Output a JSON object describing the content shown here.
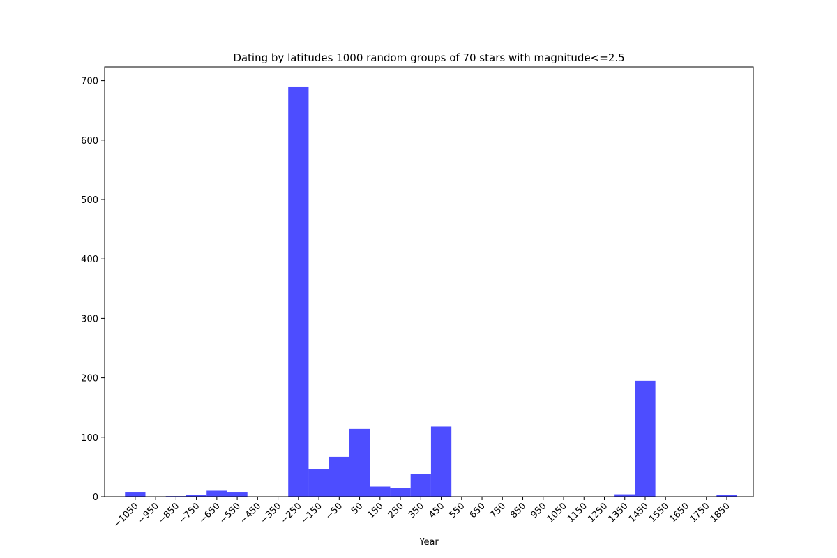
{
  "chart_data": {
    "type": "bar",
    "title": "Dating by latitudes 1000 random groups of 70 stars with magnitude<=2.5",
    "xlabel": "Year",
    "ylabel": "",
    "bin_width": 100,
    "bins": [
      {
        "start": -1100,
        "end": -1000,
        "count": 7
      },
      {
        "start": -1000,
        "end": -900,
        "count": 0
      },
      {
        "start": -900,
        "end": -800,
        "count": 1
      },
      {
        "start": -800,
        "end": -700,
        "count": 3
      },
      {
        "start": -700,
        "end": -600,
        "count": 10
      },
      {
        "start": -600,
        "end": -500,
        "count": 7
      },
      {
        "start": -500,
        "end": -400,
        "count": 0
      },
      {
        "start": -400,
        "end": -300,
        "count": 0
      },
      {
        "start": -300,
        "end": -200,
        "count": 689
      },
      {
        "start": -200,
        "end": -100,
        "count": 46
      },
      {
        "start": -100,
        "end": 0,
        "count": 67
      },
      {
        "start": 0,
        "end": 100,
        "count": 114
      },
      {
        "start": 100,
        "end": 200,
        "count": 17
      },
      {
        "start": 200,
        "end": 300,
        "count": 15
      },
      {
        "start": 300,
        "end": 400,
        "count": 38
      },
      {
        "start": 400,
        "end": 500,
        "count": 118
      },
      {
        "start": 1300,
        "end": 1400,
        "count": 4
      },
      {
        "start": 1400,
        "end": 1500,
        "count": 195
      },
      {
        "start": 1800,
        "end": 1900,
        "count": 3
      }
    ],
    "xticks": [
      -1050,
      -950,
      -850,
      -750,
      -650,
      -550,
      -450,
      -350,
      -250,
      -150,
      -50,
      50,
      150,
      250,
      350,
      450,
      550,
      650,
      750,
      850,
      950,
      1050,
      1150,
      1250,
      1350,
      1450,
      1550,
      1650,
      1750,
      1850
    ],
    "xtick_labels": [
      "−1050",
      "−950",
      "−850",
      "−750",
      "−650",
      "−550",
      "−450",
      "−350",
      "−250",
      "−150",
      "−50",
      "50",
      "150",
      "250",
      "350",
      "450",
      "550",
      "650",
      "750",
      "850",
      "950",
      "1050",
      "1150",
      "1250",
      "1350",
      "1450",
      "1550",
      "1650",
      "1750",
      "1850"
    ],
    "yticks": [
      0,
      100,
      200,
      300,
      400,
      500,
      600,
      700
    ],
    "xlim": [
      -1200,
      1980
    ],
    "ylim": [
      0,
      723
    ],
    "bar_color": "#4d4dff",
    "grid": false,
    "legend": "none"
  }
}
